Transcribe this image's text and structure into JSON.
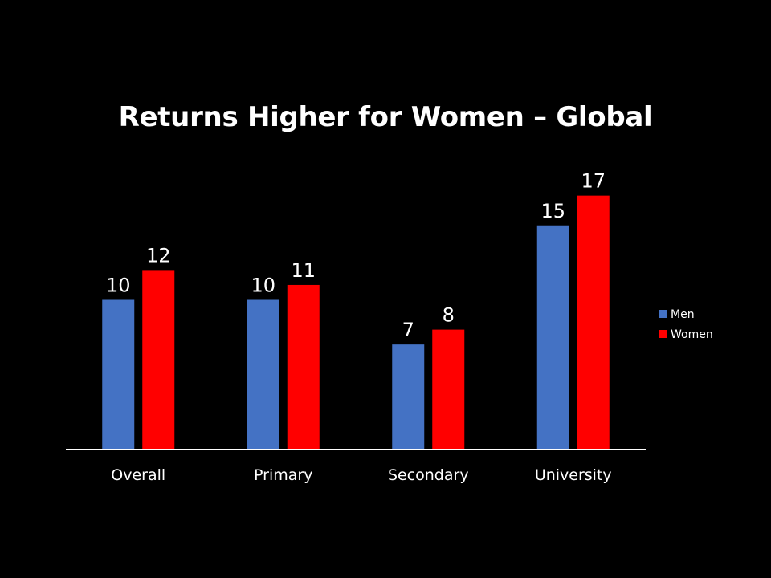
{
  "slide": {
    "title": "Returns Higher for Women – Global"
  },
  "chart_data": {
    "type": "bar",
    "title": "Returns Higher for Women – Global",
    "categories": [
      "Overall",
      "Primary",
      "Secondary",
      "University"
    ],
    "series": [
      {
        "name": "Men",
        "values": [
          10,
          10,
          7,
          15
        ],
        "color": "#4472C4"
      },
      {
        "name": "Women",
        "values": [
          12,
          11,
          8,
          17
        ],
        "color": "#FF0000"
      }
    ],
    "xlabel": "",
    "ylabel": "",
    "ylim": [
      0,
      18
    ],
    "grid": false,
    "data_labels": true,
    "legend": "right",
    "axis_color": "#ffffff"
  }
}
